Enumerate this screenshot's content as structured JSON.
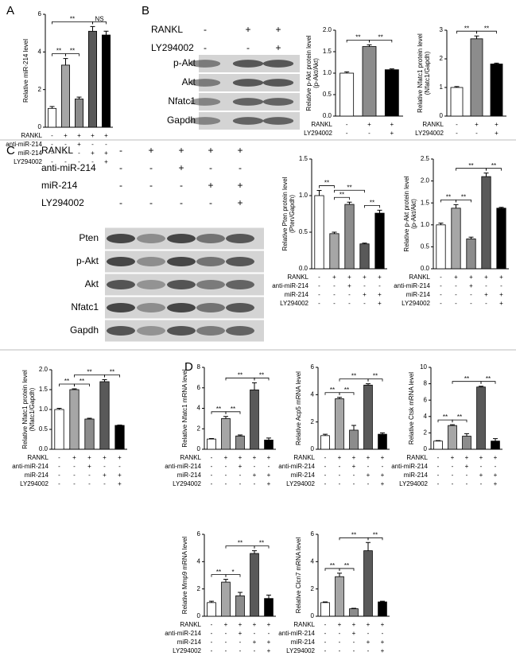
{
  "panel_labels": [
    "A",
    "B",
    "C",
    "D"
  ],
  "blots": [
    {
      "conditions": [
        {
          "name": "RANKL",
          "signs": [
            "-",
            "+",
            "+"
          ]
        },
        {
          "name": "LY294002",
          "signs": [
            "-",
            "-",
            "+"
          ]
        }
      ],
      "bands": [
        "p-Akt",
        "Akt",
        "Nfatc1",
        "Gapdh"
      ]
    },
    {
      "conditions": [
        {
          "name": "RANKL",
          "signs": [
            "-",
            "+",
            "+",
            "+",
            "+"
          ]
        },
        {
          "name": "anti-miR-214",
          "signs": [
            "-",
            "-",
            "+",
            "-",
            "-"
          ]
        },
        {
          "name": "miR-214",
          "signs": [
            "-",
            "-",
            "-",
            "+",
            "+"
          ]
        },
        {
          "name": "LY294002",
          "signs": [
            "-",
            "-",
            "-",
            "-",
            "+"
          ]
        }
      ],
      "bands": [
        "Pten",
        "p-Akt",
        "Akt",
        "Nfatc1",
        "Gapdh"
      ]
    }
  ],
  "chart_data": [
    {
      "type": "bar",
      "ylabel": [
        "Relative miR-214 level"
      ],
      "categories": [
        null,
        null,
        null,
        null,
        null
      ],
      "values": [
        1.0,
        3.3,
        1.5,
        5.1,
        4.9
      ],
      "errors": [
        0.1,
        0.35,
        0.1,
        0.25,
        0.2
      ],
      "colors": [
        "#ffffff",
        "#a6a6a6",
        "#8c8c8c",
        "#595959",
        "#000000"
      ],
      "ylim": [
        0,
        6
      ],
      "yticks": [
        0,
        2,
        4,
        6
      ],
      "conditions": [
        {
          "name": "RANKL",
          "signs": [
            "-",
            "+",
            "+",
            "+",
            "+"
          ]
        },
        {
          "name": "anti-miR-214",
          "signs": [
            "-",
            "-",
            "+",
            "-",
            "-"
          ]
        },
        {
          "name": "miR-214",
          "signs": [
            "-",
            "-",
            "-",
            "+",
            "+"
          ]
        },
        {
          "name": "LY294002",
          "signs": [
            "-",
            "-",
            "-",
            "-",
            "+"
          ]
        }
      ],
      "significance": [
        {
          "from": 0,
          "to": 1,
          "label": "**"
        },
        {
          "from": 1,
          "to": 2,
          "label": "**"
        },
        {
          "from": 3,
          "to": 4,
          "label": "NS"
        },
        {
          "from": 0,
          "to": 3,
          "label": "**"
        }
      ]
    },
    {
      "type": "bar",
      "ylabel": [
        "Relative p-Akt protein level",
        "(p-Akt/Akt)"
      ],
      "categories": [
        null,
        null,
        null
      ],
      "values": [
        1.0,
        1.62,
        1.08
      ],
      "errors": [
        0.03,
        0.04,
        0.02
      ],
      "colors": [
        "#ffffff",
        "#8c8c8c",
        "#000000"
      ],
      "ylim": [
        0,
        2
      ],
      "yticks": [
        {
          "value": 0,
          "label": "0.0"
        },
        0.5,
        {
          "value": 1,
          "label": "1.0"
        },
        1.5,
        {
          "value": 2,
          "label": "2.0"
        }
      ],
      "conditions": [
        {
          "name": "RANKL",
          "signs": [
            "-",
            "+",
            "+"
          ]
        },
        {
          "name": "LY294002",
          "signs": [
            "-",
            "-",
            "+"
          ]
        }
      ],
      "significance": [
        {
          "from": 0,
          "to": 1,
          "label": "**"
        },
        {
          "from": 1,
          "to": 2,
          "label": "**"
        }
      ]
    },
    {
      "type": "bar",
      "ylabel": [
        "Relative Nfatc1 protein level",
        "(Nfatc1/Gapdh)"
      ],
      "categories": [
        null,
        null,
        null
      ],
      "values": [
        1.0,
        2.7,
        1.82
      ],
      "errors": [
        0.03,
        0.1,
        0.03
      ],
      "colors": [
        "#ffffff",
        "#8c8c8c",
        "#000000"
      ],
      "ylim": [
        0,
        3
      ],
      "yticks": [
        0,
        1,
        2,
        3
      ],
      "conditions": [
        {
          "name": "RANKL",
          "signs": [
            "-",
            "+",
            "+"
          ]
        },
        {
          "name": "LY294002",
          "signs": [
            "-",
            "-",
            "+"
          ]
        }
      ],
      "significance": [
        {
          "from": 0,
          "to": 1,
          "label": "**"
        },
        {
          "from": 1,
          "to": 2,
          "label": "**"
        }
      ]
    },
    {
      "type": "bar",
      "ylabel": [
        "Relative Pten protein level",
        "(Pten/Gapdh)"
      ],
      "categories": [
        null,
        null,
        null,
        null,
        null
      ],
      "values": [
        1.0,
        0.48,
        0.88,
        0.34,
        0.76
      ],
      "errors": [
        0.07,
        0.02,
        0.03,
        0.01,
        0.04
      ],
      "colors": [
        "#ffffff",
        "#a6a6a6",
        "#8c8c8c",
        "#595959",
        "#000000"
      ],
      "ylim": [
        0,
        1.5
      ],
      "yticks": [
        {
          "value": 0,
          "label": "0.0"
        },
        0.5,
        {
          "value": 1,
          "label": "1.0"
        },
        1.5
      ],
      "conditions": [
        {
          "name": "RANKL",
          "signs": [
            "-",
            "+",
            "+",
            "+",
            "+"
          ]
        },
        {
          "name": "anti-miR-214",
          "signs": [
            "-",
            "-",
            "+",
            "-",
            "-"
          ]
        },
        {
          "name": "miR-214",
          "signs": [
            "-",
            "-",
            "-",
            "+",
            "+"
          ]
        },
        {
          "name": "LY294002",
          "signs": [
            "-",
            "-",
            "-",
            "-",
            "+"
          ]
        }
      ],
      "significance": [
        {
          "from": 0,
          "to": 1,
          "label": "**"
        },
        {
          "from": 1,
          "to": 2,
          "label": "**"
        },
        {
          "from": 3,
          "to": 4,
          "label": "**"
        },
        {
          "from": 1,
          "to": 3,
          "label": "**"
        }
      ]
    },
    {
      "type": "bar",
      "ylabel": [
        "Relative p-Akt protein level",
        "(p-Akt/Akt)"
      ],
      "categories": [
        null,
        null,
        null,
        null,
        null
      ],
      "values": [
        1.0,
        1.38,
        0.68,
        2.1,
        1.38
      ],
      "errors": [
        0.04,
        0.08,
        0.04,
        0.08,
        0.02
      ],
      "colors": [
        "#ffffff",
        "#a6a6a6",
        "#8c8c8c",
        "#595959",
        "#000000"
      ],
      "ylim": [
        0,
        2.5
      ],
      "yticks": [
        {
          "value": 0,
          "label": "0.0"
        },
        0.5,
        {
          "value": 1,
          "label": "1.0"
        },
        1.5,
        {
          "value": 2,
          "label": "2.0"
        },
        2.5
      ],
      "conditions": [
        {
          "name": "RANKL",
          "signs": [
            "-",
            "+",
            "+",
            "+",
            "+"
          ]
        },
        {
          "name": "anti-miR-214",
          "signs": [
            "-",
            "-",
            "+",
            "-",
            "-"
          ]
        },
        {
          "name": "miR-214",
          "signs": [
            "-",
            "-",
            "-",
            "+",
            "+"
          ]
        },
        {
          "name": "LY294002",
          "signs": [
            "-",
            "-",
            "-",
            "-",
            "+"
          ]
        }
      ],
      "significance": [
        {
          "from": 0,
          "to": 1,
          "label": "**"
        },
        {
          "from": 1,
          "to": 2,
          "label": "**"
        },
        {
          "from": 3,
          "to": 4,
          "label": "**"
        },
        {
          "from": 1,
          "to": 3,
          "label": "**"
        }
      ]
    },
    {
      "type": "bar",
      "ylabel": [
        "Relative Nfatc1 protein level",
        "(Nfatc1/Gapdh)"
      ],
      "categories": [
        null,
        null,
        null,
        null,
        null
      ],
      "values": [
        1.0,
        1.5,
        0.76,
        1.7,
        0.6
      ],
      "errors": [
        0.03,
        0.02,
        0.02,
        0.05,
        0.01
      ],
      "colors": [
        "#ffffff",
        "#a6a6a6",
        "#8c8c8c",
        "#595959",
        "#000000"
      ],
      "ylim": [
        0,
        2
      ],
      "yticks": [
        {
          "value": 0,
          "label": "0.0"
        },
        0.5,
        {
          "value": 1,
          "label": "1.0"
        },
        1.5,
        {
          "value": 2,
          "label": "2.0"
        }
      ],
      "conditions": [
        {
          "name": "RANKL",
          "signs": [
            "-",
            "+",
            "+",
            "+",
            "+"
          ]
        },
        {
          "name": "anti-miR-214",
          "signs": [
            "-",
            "-",
            "+",
            "-",
            "-"
          ]
        },
        {
          "name": "miR-214",
          "signs": [
            "-",
            "-",
            "-",
            "+",
            "+"
          ]
        },
        {
          "name": "LY294002",
          "signs": [
            "-",
            "-",
            "-",
            "-",
            "+"
          ]
        }
      ],
      "significance": [
        {
          "from": 0,
          "to": 1,
          "label": "**"
        },
        {
          "from": 1,
          "to": 2,
          "label": "**"
        },
        {
          "from": 3,
          "to": 4,
          "label": "**"
        },
        {
          "from": 1,
          "to": 3,
          "label": "**"
        }
      ]
    },
    {
      "type": "bar",
      "ylabel": [
        "Relative Nfatc1 mRNA level"
      ],
      "categories": [
        null,
        null,
        null,
        null,
        null
      ],
      "values": [
        1.0,
        3.0,
        1.3,
        5.8,
        0.9
      ],
      "errors": [
        0.05,
        0.2,
        0.1,
        0.7,
        0.2
      ],
      "colors": [
        "#ffffff",
        "#a6a6a6",
        "#8c8c8c",
        "#595959",
        "#000000"
      ],
      "ylim": [
        0,
        8
      ],
      "yticks": [
        0,
        2,
        4,
        6,
        8
      ],
      "conditions": [
        {
          "name": "RANKL",
          "signs": [
            "-",
            "+",
            "+",
            "+",
            "+"
          ]
        },
        {
          "name": "anti-miR-214",
          "signs": [
            "-",
            "-",
            "+",
            "-",
            "-"
          ]
        },
        {
          "name": "miR-214",
          "signs": [
            "-",
            "-",
            "-",
            "+",
            "+"
          ]
        },
        {
          "name": "LY294002",
          "signs": [
            "-",
            "-",
            "-",
            "-",
            "+"
          ]
        }
      ],
      "significance": [
        {
          "from": 0,
          "to": 1,
          "label": "**"
        },
        {
          "from": 1,
          "to": 2,
          "label": "**"
        },
        {
          "from": 3,
          "to": 4,
          "label": "**"
        },
        {
          "from": 1,
          "to": 3,
          "label": "**"
        }
      ]
    },
    {
      "type": "bar",
      "ylabel": [
        "Relative Acp5 mRNA level"
      ],
      "categories": [
        null,
        null,
        null,
        null,
        null
      ],
      "values": [
        1.0,
        3.7,
        1.4,
        4.7,
        1.1
      ],
      "errors": [
        0.1,
        0.1,
        0.35,
        0.1,
        0.1
      ],
      "colors": [
        "#ffffff",
        "#a6a6a6",
        "#8c8c8c",
        "#595959",
        "#000000"
      ],
      "ylim": [
        0,
        6
      ],
      "yticks": [
        0,
        2,
        4,
        6
      ],
      "conditions": [
        {
          "name": "RANKL",
          "signs": [
            "-",
            "+",
            "+",
            "+",
            "+"
          ]
        },
        {
          "name": "anti-miR-214",
          "signs": [
            "-",
            "-",
            "+",
            "-",
            "-"
          ]
        },
        {
          "name": "miR-214",
          "signs": [
            "-",
            "-",
            "-",
            "+",
            "+"
          ]
        },
        {
          "name": "LY294002",
          "signs": [
            "-",
            "-",
            "-",
            "-",
            "+"
          ]
        }
      ],
      "significance": [
        {
          "from": 0,
          "to": 1,
          "label": "**"
        },
        {
          "from": 1,
          "to": 2,
          "label": "**"
        },
        {
          "from": 3,
          "to": 4,
          "label": "**"
        },
        {
          "from": 1,
          "to": 3,
          "label": "**"
        }
      ]
    },
    {
      "type": "bar",
      "ylabel": [
        "Relative Ctsk mRNA level"
      ],
      "categories": [
        null,
        null,
        null,
        null,
        null
      ],
      "values": [
        1.0,
        2.9,
        1.6,
        7.6,
        1.0
      ],
      "errors": [
        0.05,
        0.1,
        0.3,
        0.1,
        0.3
      ],
      "colors": [
        "#ffffff",
        "#a6a6a6",
        "#8c8c8c",
        "#595959",
        "#000000"
      ],
      "ylim": [
        0,
        10
      ],
      "yticks": [
        0,
        2,
        4,
        6,
        8,
        10
      ],
      "conditions": [
        {
          "name": "RANKL",
          "signs": [
            "-",
            "+",
            "+",
            "+",
            "+"
          ]
        },
        {
          "name": "anti-miR-214",
          "signs": [
            "-",
            "-",
            "+",
            "-",
            "-"
          ]
        },
        {
          "name": "miR-214",
          "signs": [
            "-",
            "-",
            "-",
            "+",
            "+"
          ]
        },
        {
          "name": "LY294002",
          "signs": [
            "-",
            "-",
            "-",
            "-",
            "+"
          ]
        }
      ],
      "significance": [
        {
          "from": 0,
          "to": 1,
          "label": "**"
        },
        {
          "from": 1,
          "to": 2,
          "label": "**"
        },
        {
          "from": 3,
          "to": 4,
          "label": "**"
        },
        {
          "from": 1,
          "to": 3,
          "label": "**"
        }
      ]
    },
    {
      "type": "bar",
      "ylabel": [
        "Relative Mmp9 mRNA level"
      ],
      "categories": [
        null,
        null,
        null,
        null,
        null
      ],
      "values": [
        1.0,
        2.5,
        1.5,
        4.6,
        1.3
      ],
      "errors": [
        0.1,
        0.2,
        0.25,
        0.2,
        0.25
      ],
      "colors": [
        "#ffffff",
        "#a6a6a6",
        "#8c8c8c",
        "#595959",
        "#000000"
      ],
      "ylim": [
        0,
        6
      ],
      "yticks": [
        0,
        2,
        4,
        6
      ],
      "conditions": [
        {
          "name": "RANKL",
          "signs": [
            "-",
            "+",
            "+",
            "+",
            "+"
          ]
        },
        {
          "name": "anti-miR-214",
          "signs": [
            "-",
            "-",
            "+",
            "-",
            "-"
          ]
        },
        {
          "name": "miR-214",
          "signs": [
            "-",
            "-",
            "-",
            "+",
            "+"
          ]
        },
        {
          "name": "LY294002",
          "signs": [
            "-",
            "-",
            "-",
            "-",
            "+"
          ]
        }
      ],
      "significance": [
        {
          "from": 0,
          "to": 1,
          "label": "**"
        },
        {
          "from": 1,
          "to": 2,
          "label": "*"
        },
        {
          "from": 3,
          "to": 4,
          "label": "**"
        },
        {
          "from": 1,
          "to": 3,
          "label": "**"
        }
      ]
    },
    {
      "type": "bar",
      "ylabel": [
        "Relative Clcn7 mRNA level"
      ],
      "categories": [
        null,
        null,
        null,
        null,
        null
      ],
      "values": [
        1.0,
        2.9,
        0.55,
        4.8,
        1.05
      ],
      "errors": [
        0.05,
        0.25,
        0.03,
        0.6,
        0.05
      ],
      "colors": [
        "#ffffff",
        "#a6a6a6",
        "#8c8c8c",
        "#595959",
        "#000000"
      ],
      "ylim": [
        0,
        6
      ],
      "yticks": [
        0,
        2,
        4,
        6
      ],
      "conditions": [
        {
          "name": "RANKL",
          "signs": [
            "-",
            "+",
            "+",
            "+",
            "+"
          ]
        },
        {
          "name": "anti-miR-214",
          "signs": [
            "-",
            "-",
            "+",
            "-",
            "-"
          ]
        },
        {
          "name": "miR-214",
          "signs": [
            "-",
            "-",
            "-",
            "+",
            "+"
          ]
        },
        {
          "name": "LY294002",
          "signs": [
            "-",
            "-",
            "-",
            "-",
            "+"
          ]
        }
      ],
      "significance": [
        {
          "from": 0,
          "to": 1,
          "label": "**"
        },
        {
          "from": 1,
          "to": 2,
          "label": "**"
        },
        {
          "from": 3,
          "to": 4,
          "label": "**"
        },
        {
          "from": 1,
          "to": 3,
          "label": "**"
        }
      ]
    }
  ]
}
